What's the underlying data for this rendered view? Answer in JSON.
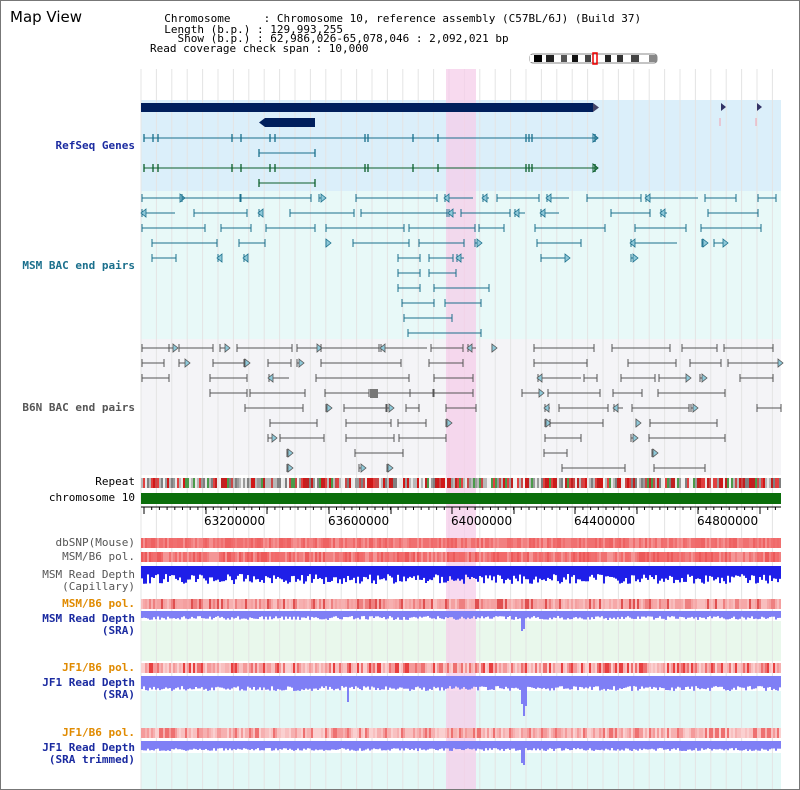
{
  "title": "Map View",
  "header": {
    "line1": "  Chromosome     : Chromosome 10, reference assembly (C57BL/6J) (Build 37)",
    "line2": "  Length (b.p.) : 129,993,255",
    "line3": "    Show (b.p.) : 62,986,026-65,078,046 : 2,092,021 bp",
    "line4": "Read coverage check span : 10,000"
  },
  "tracks": {
    "refseq": "RefSeq Genes",
    "msm_bac": "MSM BAC end pairs",
    "b6n_bac": "B6N BAC end pairs",
    "repeat": "Repeat",
    "chromosome": "chromosome 10",
    "dbsnp": "dbSNP(Mouse)",
    "msm_b6_pol": "MSM/B6 pol.",
    "msm_depth_cap_1": "MSM Read Depth",
    "msm_depth_cap_2": "(Capillary)",
    "msm_b6_pol_sra": "MSM/B6 pol.",
    "msm_depth_sra_1": "MSM Read Depth",
    "msm_depth_sra_2": "(SRA)",
    "jf1_b6_pol": "JF1/B6 pol.",
    "jf1_depth_sra_1": "JF1 Read Depth",
    "jf1_depth_sra_2": "(SRA)",
    "jf1_b6_pol_trim": "JF1/B6 pol.",
    "jf1_depth_trim_1": "JF1 Read Depth",
    "jf1_depth_trim_2": "(SRA trimmed)"
  },
  "axis": {
    "t1": "63200000",
    "t2": "63600000",
    "t3": "64000000",
    "t4": "64400000",
    "t5": "64800000"
  },
  "colors": {
    "refseq_bg": "#dbeffa",
    "msm_bg": "#e8f9f8",
    "b6n_bg": "#f4f4f7",
    "highlight": "#f5cdea",
    "gene": "#001f5c",
    "msm_line": "#1a6f8c",
    "b6n_line": "#555555",
    "chrom_green": "#0b6e0b",
    "depth_blue": "#1f1fe8",
    "depth_light_blue": "#7f7ff5",
    "label_blue": "#1a2aa0",
    "label_orange": "#e08a00",
    "pol_red": "#e05050"
  }
}
